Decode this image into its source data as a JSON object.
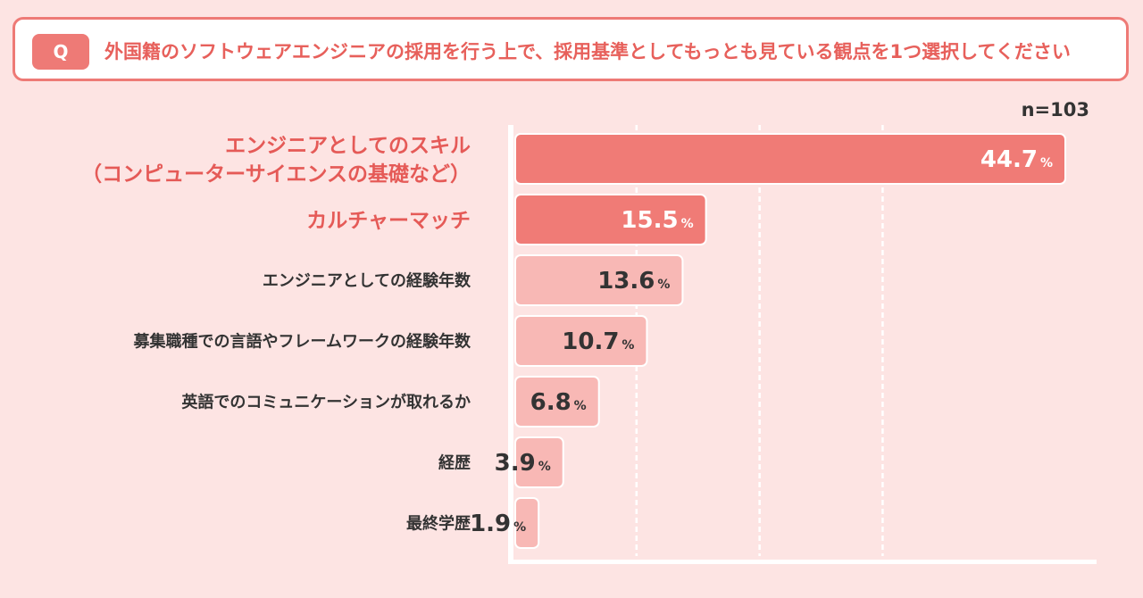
{
  "question": {
    "badge": "Q",
    "text": "外国籍のソフトウェアエンジニアの採用を行う上で、採用基準としてもっとも見ている観点を1つ選択してください"
  },
  "chart_data": {
    "type": "bar",
    "orientation": "horizontal",
    "title": "外国籍のソフトウェアエンジニアの採用を行う上で、採用基準としてもっとも見ている観点を1つ選択してください",
    "sample_size": "n=103",
    "unit": "%",
    "xlim": [
      0,
      50
    ],
    "categories": [
      [
        "エンジニアとしてのスキル",
        "（コンピューターサイエンスの基礎など）"
      ],
      [
        "カルチャーマッチ"
      ],
      [
        "エンジニアとしての経験年数"
      ],
      [
        "募集職種での言語やフレームワークの経験年数"
      ],
      [
        "英語でのコミュニケーションが取れるか"
      ],
      [
        "経歴"
      ],
      [
        "最終学歴"
      ]
    ],
    "values": [
      44.7,
      15.5,
      13.6,
      10.7,
      6.8,
      3.9,
      1.9
    ],
    "value_labels": [
      "44.7",
      "15.5",
      "13.6",
      "10.7",
      "6.8",
      "3.9",
      "1.9"
    ],
    "highlighted": [
      true,
      true,
      false,
      false,
      false,
      false,
      false
    ],
    "colors": {
      "highlight_bar": "#f07b76",
      "normal_bar": "#f8b8b5",
      "highlight_label": "#e55a57",
      "normal_label": "#333333",
      "highlight_value": "#ffffff",
      "normal_value": "#333333",
      "grid": "#ffffff",
      "axis": "#ffffff",
      "accent": "#ee7a76"
    }
  }
}
